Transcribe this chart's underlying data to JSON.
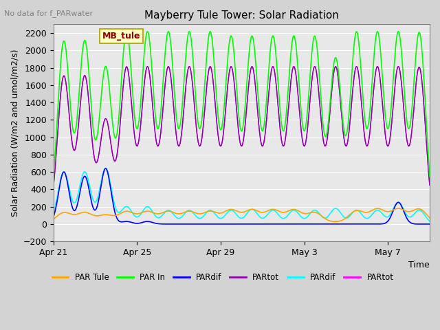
{
  "title": "Mayberry Tule Tower: Solar Radiation",
  "ylabel": "Solar Radiation (W/m2 and umol/m2/s)",
  "xlabel": "Time",
  "top_note": "No data for f_PARwater",
  "legend_label": "MB_tule",
  "ylim": [
    -200,
    2300
  ],
  "yticks": [
    -200,
    0,
    200,
    400,
    600,
    800,
    1000,
    1200,
    1400,
    1600,
    1800,
    2000,
    2200
  ],
  "bg_color": "#d3d3d3",
  "plot_bg_color": "#e8e8e8",
  "series": [
    {
      "label": "PAR Tule",
      "color": "#ffa500",
      "lw": 1.5
    },
    {
      "label": "PAR In",
      "color": "#00ff00",
      "lw": 1.5
    },
    {
      "label": "PARdif",
      "color": "#0000ff",
      "lw": 1.5
    },
    {
      "label": "PARtot",
      "color": "#8800aa",
      "lw": 1.5
    },
    {
      "label": "PARdif",
      "color": "#00ffff",
      "lw": 1.5
    },
    {
      "label": "PARtot",
      "color": "#ff00ff",
      "lw": 1.5
    }
  ],
  "xticklabels": [
    "Apr 21",
    "Apr 25",
    "Apr 29",
    "May 3",
    "May 7"
  ],
  "xtick_positions": [
    0,
    4,
    8,
    12,
    16
  ],
  "n_days": 18,
  "peaks_green": [
    2100,
    2100,
    1800,
    2200,
    2200,
    2200,
    2200,
    2200,
    2150,
    2150,
    2150,
    2150,
    2150,
    1900,
    2200,
    2200,
    2200,
    2200
  ],
  "peaks_magenta": [
    1700,
    1700,
    1200,
    1800,
    1800,
    1800,
    1800,
    1800,
    1800,
    1800,
    1800,
    1800,
    1800,
    1800,
    1800,
    1800,
    1800,
    1800
  ],
  "peaks_orange": [
    130,
    130,
    100,
    140,
    140,
    140,
    140,
    140,
    160,
    160,
    160,
    160,
    130,
    20,
    150,
    170,
    170,
    170
  ],
  "peaks_cyan": [
    600,
    600,
    640,
    200,
    200,
    160,
    160,
    160,
    160,
    170,
    160,
    160,
    160,
    180,
    160,
    160,
    250,
    160
  ],
  "peaks_blue": [
    600,
    550,
    640,
    30,
    30,
    0,
    0,
    0,
    0,
    0,
    0,
    0,
    0,
    0,
    0,
    0,
    250,
    0
  ],
  "peaks_purple": [
    1700,
    1700,
    1200,
    1800,
    1800,
    1800,
    1800,
    1800,
    1800,
    1800,
    1800,
    1800,
    1800,
    1800,
    1800,
    1800,
    1800,
    1800
  ]
}
